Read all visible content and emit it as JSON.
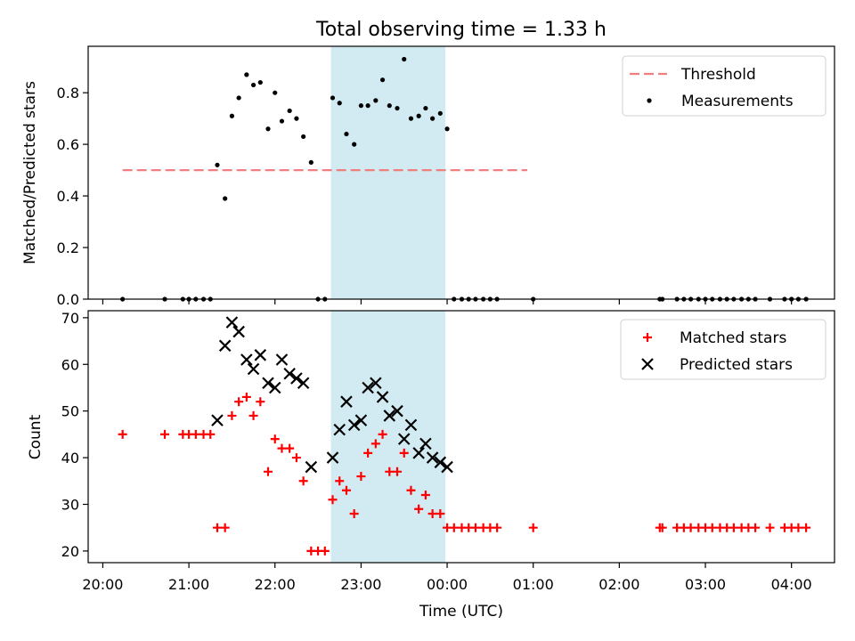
{
  "figure_title": "Total observing time = 1.33 h",
  "chart_data": [
    {
      "type": "scatter",
      "name": "top-panel",
      "ylabel": "Matched/Predicted stars",
      "xlabel": "",
      "ylim": [
        0,
        0.98
      ],
      "yticks": [
        0.0,
        0.2,
        0.4,
        0.6,
        0.8
      ],
      "ytick_labels": [
        "0.0",
        "0.2",
        "0.4",
        "0.6",
        "0.8"
      ],
      "shaded_span": {
        "x": [
          22.65,
          23.98
        ],
        "color": "#add8e6"
      },
      "threshold": {
        "name": "Threshold",
        "y": 0.5,
        "x_range": [
          20.23,
          24.93
        ],
        "color": "#f08080"
      },
      "series": [
        {
          "name": "Measurements",
          "color": "#000000",
          "marker": "dot",
          "points": [
            [
              20.23,
              0
            ],
            [
              20.72,
              0
            ],
            [
              20.93,
              0
            ],
            [
              21.0,
              0
            ],
            [
              21.08,
              0
            ],
            [
              21.17,
              0
            ],
            [
              21.25,
              0
            ],
            [
              21.33,
              0.52
            ],
            [
              21.42,
              0.39
            ],
            [
              21.5,
              0.71
            ],
            [
              21.58,
              0.78
            ],
            [
              21.67,
              0.87
            ],
            [
              21.75,
              0.83
            ],
            [
              21.83,
              0.84
            ],
            [
              21.92,
              0.66
            ],
            [
              22.0,
              0.8
            ],
            [
              22.08,
              0.69
            ],
            [
              22.17,
              0.73
            ],
            [
              22.25,
              0.7
            ],
            [
              22.33,
              0.63
            ],
            [
              22.42,
              0.53
            ],
            [
              22.5,
              0
            ],
            [
              22.58,
              0
            ],
            [
              22.67,
              0.78
            ],
            [
              22.75,
              0.76
            ],
            [
              22.83,
              0.64
            ],
            [
              22.92,
              0.6
            ],
            [
              23.0,
              0.75
            ],
            [
              23.08,
              0.75
            ],
            [
              23.17,
              0.77
            ],
            [
              23.25,
              0.85
            ],
            [
              23.33,
              0.75
            ],
            [
              23.42,
              0.74
            ],
            [
              23.5,
              0.93
            ],
            [
              23.58,
              0.7
            ],
            [
              23.67,
              0.71
            ],
            [
              23.75,
              0.74
            ],
            [
              23.83,
              0.7
            ],
            [
              23.92,
              0.72
            ],
            [
              24.0,
              0.66
            ],
            [
              24.08,
              0
            ],
            [
              24.17,
              0
            ],
            [
              24.25,
              0
            ],
            [
              24.33,
              0
            ],
            [
              24.42,
              0
            ],
            [
              24.5,
              0
            ],
            [
              24.58,
              0
            ],
            [
              25.0,
              0
            ],
            [
              26.47,
              0
            ],
            [
              26.5,
              0
            ],
            [
              26.67,
              0
            ],
            [
              26.75,
              0
            ],
            [
              26.83,
              0
            ],
            [
              26.92,
              0
            ],
            [
              27.0,
              0
            ],
            [
              27.08,
              0
            ],
            [
              27.17,
              0
            ],
            [
              27.25,
              0
            ],
            [
              27.33,
              0
            ],
            [
              27.42,
              0
            ],
            [
              27.5,
              0
            ],
            [
              27.58,
              0
            ],
            [
              27.75,
              0
            ],
            [
              27.92,
              0
            ],
            [
              28.0,
              0
            ],
            [
              28.08,
              0
            ],
            [
              28.17,
              0
            ]
          ]
        }
      ],
      "legend": {
        "position": "upper right",
        "entries": [
          "Threshold",
          "Measurements"
        ]
      }
    },
    {
      "type": "scatter",
      "name": "bottom-panel",
      "ylabel": "Count",
      "xlabel": "Time (UTC)",
      "ylim": [
        17.5,
        71.5
      ],
      "yticks": [
        20,
        30,
        40,
        50,
        60,
        70
      ],
      "ytick_labels": [
        "20",
        "30",
        "40",
        "50",
        "60",
        "70"
      ],
      "shaded_span": {
        "x": [
          22.65,
          23.98
        ],
        "color": "#add8e6"
      },
      "series": [
        {
          "name": "Matched stars",
          "color": "#ff0000",
          "marker": "plus",
          "points": [
            [
              20.23,
              45
            ],
            [
              20.72,
              45
            ],
            [
              20.93,
              45
            ],
            [
              21.0,
              45
            ],
            [
              21.08,
              45
            ],
            [
              21.17,
              45
            ],
            [
              21.25,
              45
            ],
            [
              21.33,
              25
            ],
            [
              21.42,
              25
            ],
            [
              21.5,
              49
            ],
            [
              21.58,
              52
            ],
            [
              21.67,
              53
            ],
            [
              21.75,
              49
            ],
            [
              21.83,
              52
            ],
            [
              21.92,
              37
            ],
            [
              22.0,
              44
            ],
            [
              22.08,
              42
            ],
            [
              22.17,
              42
            ],
            [
              22.25,
              40
            ],
            [
              22.33,
              35
            ],
            [
              22.42,
              20
            ],
            [
              22.5,
              20
            ],
            [
              22.58,
              20
            ],
            [
              22.67,
              31
            ],
            [
              22.75,
              35
            ],
            [
              22.83,
              33
            ],
            [
              22.92,
              28
            ],
            [
              23.0,
              36
            ],
            [
              23.08,
              41
            ],
            [
              23.17,
              43
            ],
            [
              23.25,
              45
            ],
            [
              23.33,
              37
            ],
            [
              23.42,
              37
            ],
            [
              23.5,
              41
            ],
            [
              23.58,
              33
            ],
            [
              23.67,
              29
            ],
            [
              23.75,
              32
            ],
            [
              23.83,
              28
            ],
            [
              23.92,
              28
            ],
            [
              24.0,
              25
            ],
            [
              24.08,
              25
            ],
            [
              24.17,
              25
            ],
            [
              24.25,
              25
            ],
            [
              24.33,
              25
            ],
            [
              24.42,
              25
            ],
            [
              24.5,
              25
            ],
            [
              24.58,
              25
            ],
            [
              25.0,
              25
            ],
            [
              26.47,
              25
            ],
            [
              26.5,
              25
            ],
            [
              26.67,
              25
            ],
            [
              26.75,
              25
            ],
            [
              26.83,
              25
            ],
            [
              26.92,
              25
            ],
            [
              27.0,
              25
            ],
            [
              27.08,
              25
            ],
            [
              27.17,
              25
            ],
            [
              27.25,
              25
            ],
            [
              27.33,
              25
            ],
            [
              27.42,
              25
            ],
            [
              27.5,
              25
            ],
            [
              27.58,
              25
            ],
            [
              27.75,
              25
            ],
            [
              27.92,
              25
            ],
            [
              28.0,
              25
            ],
            [
              28.08,
              25
            ],
            [
              28.17,
              25
            ]
          ]
        },
        {
          "name": "Predicted stars",
          "color": "#000000",
          "marker": "x",
          "points": [
            [
              21.33,
              48
            ],
            [
              21.42,
              64
            ],
            [
              21.5,
              69
            ],
            [
              21.58,
              67
            ],
            [
              21.67,
              61
            ],
            [
              21.75,
              59
            ],
            [
              21.83,
              62
            ],
            [
              21.92,
              56
            ],
            [
              22.0,
              55
            ],
            [
              22.08,
              61
            ],
            [
              22.17,
              58
            ],
            [
              22.25,
              57
            ],
            [
              22.33,
              56
            ],
            [
              22.42,
              38
            ],
            [
              22.67,
              40
            ],
            [
              22.75,
              46
            ],
            [
              22.83,
              52
            ],
            [
              22.92,
              47
            ],
            [
              23.0,
              48
            ],
            [
              23.08,
              55
            ],
            [
              23.17,
              56
            ],
            [
              23.25,
              53
            ],
            [
              23.33,
              49
            ],
            [
              23.42,
              50
            ],
            [
              23.5,
              44
            ],
            [
              23.58,
              47
            ],
            [
              23.67,
              41
            ],
            [
              23.75,
              43
            ],
            [
              23.83,
              40
            ],
            [
              23.92,
              39
            ],
            [
              24.0,
              38
            ]
          ]
        }
      ],
      "legend": {
        "position": "upper right",
        "entries": [
          "Matched stars",
          "Predicted stars"
        ]
      }
    }
  ],
  "x_axis": {
    "range": [
      19.83,
      28.5
    ],
    "ticks": [
      20,
      21,
      22,
      23,
      24,
      25,
      26,
      27,
      28
    ],
    "tick_labels": [
      "20:00",
      "21:00",
      "22:00",
      "23:00",
      "00:00",
      "01:00",
      "02:00",
      "03:00",
      "04:00"
    ]
  }
}
